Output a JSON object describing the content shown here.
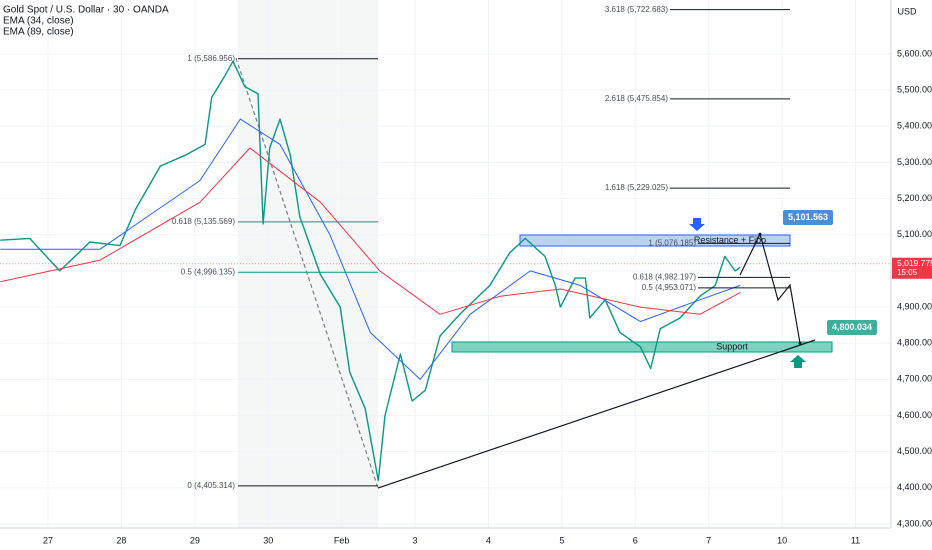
{
  "chart_data": {
    "type": "line",
    "title": "Gold Spot / U.S. Dollar · 30 · OANDA",
    "currency": "USD",
    "xlim": [
      -0.654,
      11.47
    ],
    "ylim": [
      4288.8,
      5749.4
    ],
    "xticks": [
      {
        "value": 0,
        "label": "27"
      },
      {
        "value": 1,
        "label": "28"
      },
      {
        "value": 2,
        "label": "29"
      },
      {
        "value": 3,
        "label": "30"
      },
      {
        "value": 4,
        "label": "Feb"
      },
      {
        "value": 5,
        "label": "3"
      },
      {
        "value": 6,
        "label": "4"
      },
      {
        "value": 7,
        "label": "5"
      },
      {
        "value": 8,
        "label": "6"
      },
      {
        "value": 9,
        "label": "7"
      },
      {
        "value": 10,
        "label": "10"
      },
      {
        "value": 11,
        "label": "11"
      }
    ],
    "yticks": [
      {
        "value": 4300,
        "label": "4,300.000"
      },
      {
        "value": 4400,
        "label": "4,400.000"
      },
      {
        "value": 4500,
        "label": "4,500.000"
      },
      {
        "value": 4600,
        "label": "4,600.000"
      },
      {
        "value": 4700,
        "label": "4,700.000"
      },
      {
        "value": 4800,
        "label": "4,800.000"
      },
      {
        "value": 4900,
        "label": "4,900.000"
      },
      {
        "value": 5000,
        "label": "5,000.000"
      },
      {
        "value": 5100,
        "label": "5,100.000"
      },
      {
        "value": 5200,
        "label": "5,200.000"
      },
      {
        "value": 5300,
        "label": "5,300.000"
      },
      {
        "value": 5400,
        "label": "5,400.000"
      },
      {
        "value": 5500,
        "label": "5,500.000"
      },
      {
        "value": 5600,
        "label": "5,600.000"
      }
    ],
    "series": [
      {
        "color": "#089981",
        "x": [
          -0.65,
          -0.25,
          0.16,
          0.57,
          0.98,
          1.19,
          1.53,
          1.87,
          2.14,
          2.23,
          2.41,
          2.52,
          2.68,
          2.86,
          2.93,
          3.02,
          3.16,
          3.3,
          3.43,
          3.71,
          3.98,
          4.11,
          4.32,
          4.5,
          4.59,
          4.8,
          4.96,
          5.14,
          5.34,
          5.61,
          6.02,
          6.29,
          6.5,
          6.77,
          6.91,
          6.98,
          7.18,
          7.32,
          7.38,
          7.59,
          7.79,
          8.07,
          8.21,
          8.34,
          8.61,
          8.88,
          9.09,
          9.22,
          9.36,
          9.43
        ],
        "values": [
          5085,
          5090,
          5000,
          5080,
          5070,
          5170,
          5290,
          5320,
          5350,
          5480,
          5540,
          5580,
          5510,
          5490,
          5130,
          5340,
          5420,
          5320,
          5150,
          4990,
          4900,
          4720,
          4620,
          4420,
          4600,
          4770,
          4640,
          4670,
          4820,
          4880,
          4960,
          5050,
          5090,
          5040,
          4960,
          4900,
          4980,
          4980,
          4870,
          4920,
          4830,
          4790,
          4730,
          4840,
          4870,
          4930,
          4960,
          5040,
          5000,
          5010
        ]
      },
      {
        "name": "EMA (34, close)",
        "color": "#2962ff",
        "x": [
          -0.65,
          0.71,
          2.07,
          2.62,
          3.16,
          3.84,
          4.39,
          5.07,
          5.75,
          6.57,
          7.25,
          8.07,
          8.88,
          9.43
        ],
        "values": [
          5060,
          5060,
          5250,
          5420,
          5350,
          5100,
          4830,
          4700,
          4880,
          5000,
          4960,
          4860,
          4920,
          4960
        ]
      },
      {
        "name": "EMA (89, close)",
        "color": "#f23645",
        "x": [
          -0.65,
          0.71,
          2.07,
          2.75,
          3.71,
          4.52,
          5.34,
          6.16,
          6.98,
          8.07,
          8.88,
          9.43
        ],
        "values": [
          4970,
          5030,
          5190,
          5340,
          5190,
          5000,
          4880,
          4930,
          4950,
          4900,
          4880,
          4940
        ]
      }
    ],
    "fib_left": [
      {
        "label": "1 (5,586.956)",
        "value": 5586.956
      },
      {
        "label": "0.618 (5,135.569)",
        "value": 5135.569
      },
      {
        "label": "0.5 (4,996.135)",
        "value": 4996.135
      },
      {
        "label": "0 (4,405.314)",
        "value": 4405.314
      }
    ],
    "fib_right": [
      {
        "label": "3.618 (5,722.683)",
        "value": 5722.683
      },
      {
        "label": "2.618 (5,475.854)",
        "value": 5475.854
      },
      {
        "label": "1.618 (5,229.025)",
        "value": 5229.025
      },
      {
        "label": "1 (5,076.185)",
        "value": 5076.185
      },
      {
        "label": "0.618 (4,982.197)",
        "value": 4982.197
      },
      {
        "label": "0.5 (4,953.071)",
        "value": 4953.071
      }
    ],
    "zones": [
      {
        "label": "Resistance + Fibo"
      },
      {
        "label": "Support"
      }
    ],
    "targets": [
      {
        "value": 5101.563,
        "label": "5,101.563"
      },
      {
        "value": 4800.034,
        "label": "4,800.034"
      }
    ],
    "last_price": {
      "value": 5019.775,
      "label": "5,019.775",
      "countdown": "15:05"
    }
  }
}
